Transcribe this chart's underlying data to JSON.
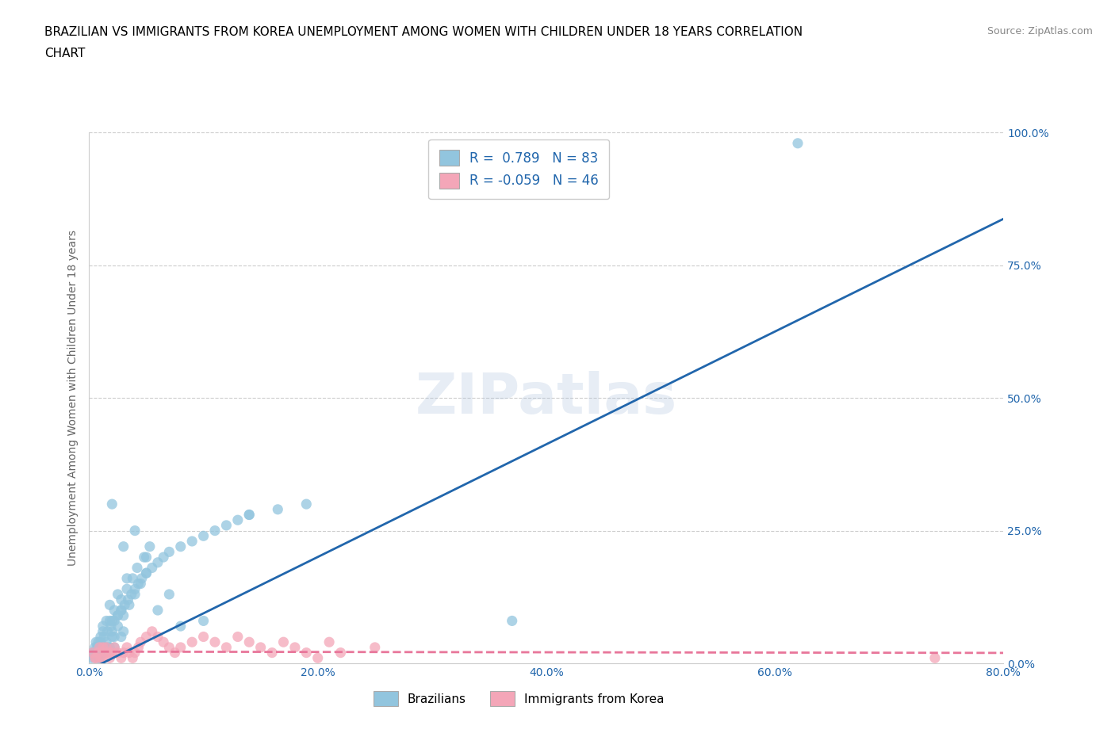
{
  "title_line1": "BRAZILIAN VS IMMIGRANTS FROM KOREA UNEMPLOYMENT AMONG WOMEN WITH CHILDREN UNDER 18 YEARS CORRELATION",
  "title_line2": "CHART",
  "source": "Source: ZipAtlas.com",
  "ylabel": "Unemployment Among Women with Children Under 18 years",
  "xlim": [
    0.0,
    0.8
  ],
  "ylim": [
    0.0,
    1.0
  ],
  "xticks": [
    0.0,
    0.2,
    0.4,
    0.6,
    0.8
  ],
  "yticks": [
    0.0,
    0.25,
    0.5,
    0.75,
    1.0
  ],
  "xtick_labels": [
    "0.0%",
    "20.0%",
    "40.0%",
    "60.0%",
    "80.0%"
  ],
  "ytick_labels": [
    "0.0%",
    "25.0%",
    "50.0%",
    "75.0%",
    "100.0%"
  ],
  "watermark": "ZIPatlas",
  "R_brazilian": 0.789,
  "N_brazilian": 83,
  "R_korean": -0.059,
  "N_korean": 46,
  "blue_color": "#92C5DE",
  "pink_color": "#F4A6B8",
  "blue_line_color": "#2166AC",
  "pink_line_color": "#E8769A",
  "blue_line_slope": 1.062,
  "blue_line_intercept": -0.012,
  "pink_line_slope": -0.003,
  "pink_line_intercept": 0.022,
  "blue_scatter": [
    [
      0.005,
      0.01
    ],
    [
      0.008,
      0.04
    ],
    [
      0.01,
      0.02
    ],
    [
      0.012,
      0.06
    ],
    [
      0.015,
      0.08
    ],
    [
      0.018,
      0.03
    ],
    [
      0.02,
      0.05
    ],
    [
      0.022,
      0.1
    ],
    [
      0.025,
      0.07
    ],
    [
      0.028,
      0.12
    ],
    [
      0.03,
      0.09
    ],
    [
      0.033,
      0.14
    ],
    [
      0.035,
      0.11
    ],
    [
      0.038,
      0.16
    ],
    [
      0.04,
      0.13
    ],
    [
      0.042,
      0.18
    ],
    [
      0.045,
      0.15
    ],
    [
      0.048,
      0.2
    ],
    [
      0.05,
      0.17
    ],
    [
      0.053,
      0.22
    ],
    [
      0.005,
      0.03
    ],
    [
      0.008,
      0.01
    ],
    [
      0.01,
      0.05
    ],
    [
      0.012,
      0.02
    ],
    [
      0.015,
      0.04
    ],
    [
      0.018,
      0.08
    ],
    [
      0.02,
      0.06
    ],
    [
      0.022,
      0.03
    ],
    [
      0.025,
      0.09
    ],
    [
      0.028,
      0.05
    ],
    [
      0.003,
      0.02
    ],
    [
      0.006,
      0.04
    ],
    [
      0.009,
      0.01
    ],
    [
      0.012,
      0.07
    ],
    [
      0.015,
      0.03
    ],
    [
      0.018,
      0.11
    ],
    [
      0.02,
      0.08
    ],
    [
      0.022,
      0.05
    ],
    [
      0.025,
      0.13
    ],
    [
      0.028,
      0.1
    ],
    [
      0.03,
      0.06
    ],
    [
      0.033,
      0.16
    ],
    [
      0.002,
      0.01
    ],
    [
      0.004,
      0.02
    ],
    [
      0.007,
      0.03
    ],
    [
      0.01,
      0.04
    ],
    [
      0.013,
      0.05
    ],
    [
      0.016,
      0.06
    ],
    [
      0.019,
      0.07
    ],
    [
      0.022,
      0.08
    ],
    [
      0.025,
      0.09
    ],
    [
      0.028,
      0.1
    ],
    [
      0.031,
      0.11
    ],
    [
      0.034,
      0.12
    ],
    [
      0.037,
      0.13
    ],
    [
      0.04,
      0.14
    ],
    [
      0.043,
      0.15
    ],
    [
      0.046,
      0.16
    ],
    [
      0.05,
      0.17
    ],
    [
      0.055,
      0.18
    ],
    [
      0.06,
      0.19
    ],
    [
      0.065,
      0.2
    ],
    [
      0.07,
      0.21
    ],
    [
      0.08,
      0.22
    ],
    [
      0.09,
      0.23
    ],
    [
      0.1,
      0.24
    ],
    [
      0.11,
      0.25
    ],
    [
      0.12,
      0.26
    ],
    [
      0.13,
      0.27
    ],
    [
      0.14,
      0.28
    ],
    [
      0.02,
      0.3
    ],
    [
      0.04,
      0.25
    ],
    [
      0.06,
      0.1
    ],
    [
      0.08,
      0.07
    ],
    [
      0.1,
      0.08
    ],
    [
      0.03,
      0.22
    ],
    [
      0.05,
      0.2
    ],
    [
      0.07,
      0.13
    ],
    [
      0.37,
      0.08
    ],
    [
      0.62,
      0.98
    ],
    [
      0.14,
      0.28
    ],
    [
      0.165,
      0.29
    ],
    [
      0.19,
      0.3
    ]
  ],
  "pink_scatter": [
    [
      0.005,
      0.01
    ],
    [
      0.008,
      0.02
    ],
    [
      0.01,
      0.01
    ],
    [
      0.012,
      0.03
    ],
    [
      0.015,
      0.02
    ],
    [
      0.018,
      0.01
    ],
    [
      0.02,
      0.02
    ],
    [
      0.022,
      0.03
    ],
    [
      0.025,
      0.02
    ],
    [
      0.028,
      0.01
    ],
    [
      0.03,
      0.02
    ],
    [
      0.033,
      0.03
    ],
    [
      0.035,
      0.02
    ],
    [
      0.038,
      0.01
    ],
    [
      0.04,
      0.02
    ],
    [
      0.043,
      0.03
    ],
    [
      0.045,
      0.04
    ],
    [
      0.05,
      0.05
    ],
    [
      0.055,
      0.06
    ],
    [
      0.06,
      0.05
    ],
    [
      0.065,
      0.04
    ],
    [
      0.07,
      0.03
    ],
    [
      0.075,
      0.02
    ],
    [
      0.08,
      0.03
    ],
    [
      0.09,
      0.04
    ],
    [
      0.1,
      0.05
    ],
    [
      0.11,
      0.04
    ],
    [
      0.12,
      0.03
    ],
    [
      0.13,
      0.05
    ],
    [
      0.14,
      0.04
    ],
    [
      0.15,
      0.03
    ],
    [
      0.16,
      0.02
    ],
    [
      0.17,
      0.04
    ],
    [
      0.18,
      0.03
    ],
    [
      0.19,
      0.02
    ],
    [
      0.2,
      0.01
    ],
    [
      0.003,
      0.02
    ],
    [
      0.006,
      0.01
    ],
    [
      0.009,
      0.03
    ],
    [
      0.012,
      0.01
    ],
    [
      0.015,
      0.03
    ],
    [
      0.018,
      0.02
    ],
    [
      0.74,
      0.01
    ],
    [
      0.22,
      0.02
    ],
    [
      0.25,
      0.03
    ],
    [
      0.21,
      0.04
    ]
  ],
  "bottom_legend_labels": [
    "Brazilians",
    "Immigrants from Korea"
  ]
}
